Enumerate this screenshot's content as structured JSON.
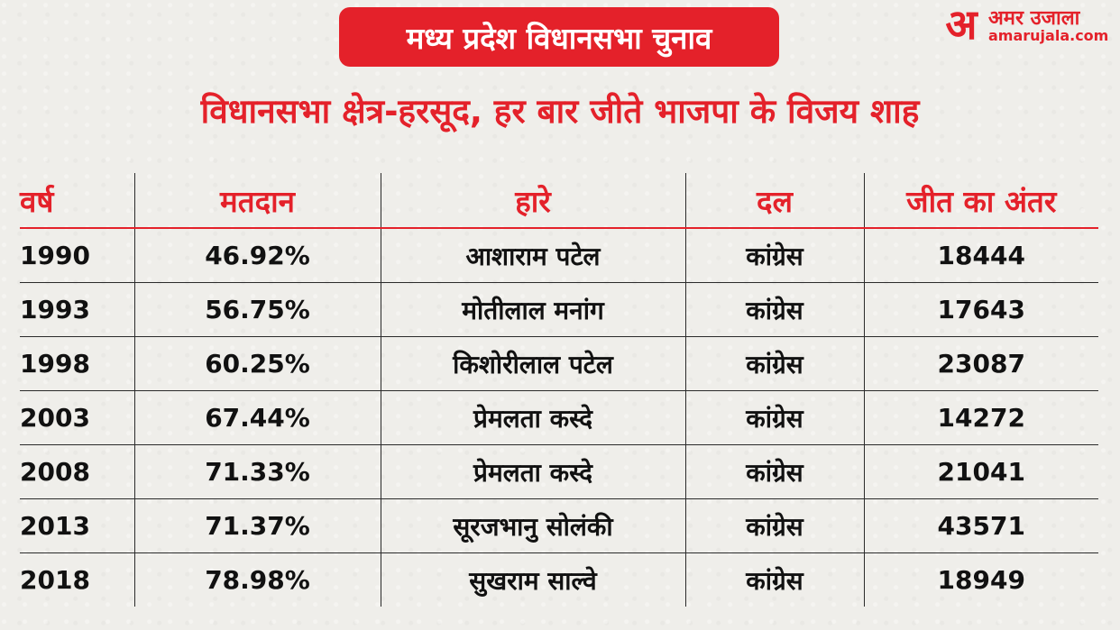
{
  "header": {
    "badge": "मध्य प्रदेश विधानसभा चुनाव",
    "subtitle": "विधानसभा क्षेत्र-हरसूद, हर बार जीते भाजपा के विजय शाह"
  },
  "brand": {
    "mark": "अ",
    "name": "अमर उजाला",
    "url": "amarujala.com",
    "color": "#e4212a"
  },
  "table": {
    "columns": [
      "वर्ष",
      "मतदान",
      "हारे",
      "दल",
      "जीत का अंतर"
    ],
    "rows": [
      [
        "1990",
        "46.92%",
        "आशाराम पटेल",
        "कांग्रेस",
        "18444"
      ],
      [
        "1993",
        "56.75%",
        "मोतीलाल मनांग",
        "कांग्रेस",
        "17643"
      ],
      [
        "1998",
        "60.25%",
        "किशोरीलाल पटेल",
        "कांग्रेस",
        "23087"
      ],
      [
        "2003",
        "67.44%",
        "प्रेमलता कस्दे",
        "कांग्रेस",
        "14272"
      ],
      [
        "2008",
        "71.33%",
        "प्रेमलता कस्दे",
        "कांग्रेस",
        "21041"
      ],
      [
        "2013",
        "71.37%",
        "सूरजभानु सोलंकी",
        "कांग्रेस",
        "43571"
      ],
      [
        "2018",
        "78.98%",
        "सुखराम साल्वे",
        "कांग्रेस",
        "18949"
      ]
    ]
  },
  "colors": {
    "accent": "#e4212a",
    "background": "#efeeea",
    "text": "#111111"
  }
}
